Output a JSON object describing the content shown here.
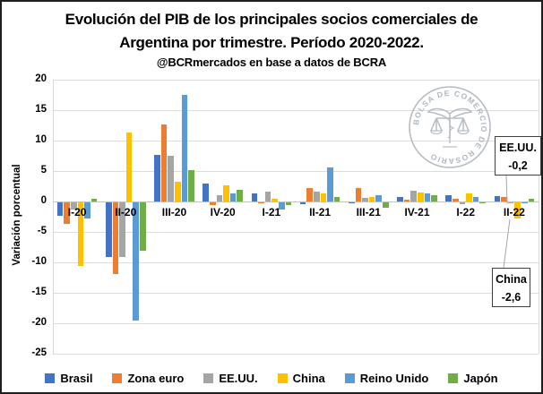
{
  "title": {
    "line1": "Evolución del PIB de los principales socios comerciales de",
    "line2": "Argentina por trimestre. Período 2020-2022.",
    "subtitle": "@BCRmercados en base a datos de BCRA"
  },
  "watermark": {
    "text": "BOLSA DE COMERCIO DE ROSARIO"
  },
  "annotations": [
    {
      "label": "EE.UU.",
      "value": "-0,2"
    },
    {
      "label": "China",
      "value": "-2,6"
    }
  ],
  "chart_data": {
    "type": "bar",
    "title": "Evolución del PIB de los principales socios comerciales de Argentina por trimestre. Período 2020-2022.",
    "subtitle": "@BCRmercados en base a datos de BCRA",
    "ylabel": "Variación porcentual",
    "xlabel": "",
    "ylim": [
      -25,
      20
    ],
    "ytick_step": 5,
    "grid": true,
    "legend_position": "bottom",
    "categories": [
      "I-20",
      "II-20",
      "III-20",
      "IV-20",
      "I-21",
      "II-21",
      "III-21",
      "IV-21",
      "I-22",
      "II-22"
    ],
    "series": [
      {
        "name": "Brasil",
        "color": "#4472C4",
        "values": [
          -2.2,
          -9.0,
          7.6,
          3.0,
          1.3,
          -0.3,
          -0.1,
          0.7,
          1.0,
          0.9
        ]
      },
      {
        "name": "Zona euro",
        "color": "#ED7D31",
        "values": [
          -3.5,
          -11.8,
          12.7,
          -0.4,
          -0.2,
          2.2,
          2.2,
          0.3,
          0.5,
          0.8
        ]
      },
      {
        "name": "EE.UU.",
        "color": "#A5A5A5",
        "values": [
          -1.2,
          -9.0,
          7.5,
          1.1,
          1.6,
          1.6,
          0.6,
          1.7,
          -0.3,
          -0.2
        ]
      },
      {
        "name": "China",
        "color": "#FFC000",
        "values": [
          -10.5,
          11.3,
          3.2,
          2.7,
          0.5,
          1.3,
          0.8,
          1.5,
          1.4,
          -2.6
        ]
      },
      {
        "name": "Reino Unido",
        "color": "#5B9BD5",
        "values": [
          -2.7,
          -19.4,
          17.5,
          1.4,
          -1.2,
          5.6,
          1.0,
          1.3,
          0.8,
          -0.2
        ]
      },
      {
        "name": "Japón",
        "color": "#70AD47",
        "values": [
          0.5,
          -8.0,
          5.2,
          1.9,
          -0.5,
          0.7,
          -0.9,
          1.1,
          -0.2,
          0.5
        ]
      }
    ],
    "annotated_points": [
      {
        "series": "EE.UU.",
        "category": "II-22",
        "value": -0.2,
        "value_label": "-0,2"
      },
      {
        "series": "China",
        "category": "II-22",
        "value": -2.6,
        "value_label": "-2,6"
      }
    ]
  }
}
